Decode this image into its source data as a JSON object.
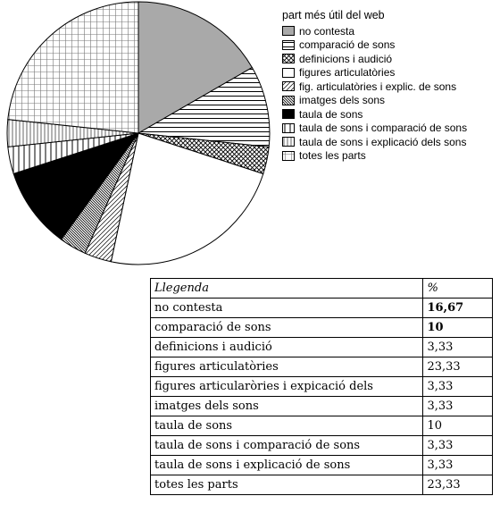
{
  "chart_data": {
    "type": "pie",
    "legend_title": "part més útil del web",
    "legend_placement": "right",
    "slices": [
      {
        "label": "no contesta",
        "value": 16.67,
        "pattern": "gray"
      },
      {
        "label": "comparació de sons",
        "value": 10,
        "pattern": "hlines"
      },
      {
        "label": "definicions i audició",
        "value": 3.33,
        "pattern": "crosshatch"
      },
      {
        "label": "figures articulatòries",
        "value": 23.33,
        "pattern": "white"
      },
      {
        "label": "fig. articulatòries i explic. de sons",
        "value": 3.33,
        "pattern": "diag"
      },
      {
        "label": "imatges dels sons",
        "value": 3.33,
        "pattern": "dense-diag"
      },
      {
        "label": "taula de sons",
        "value": 10,
        "pattern": "black"
      },
      {
        "label": "taula de sons i comparació de sons",
        "value": 3.33,
        "pattern": "vlines"
      },
      {
        "label": "taula de sons i explicació dels sons",
        "value": 3.33,
        "pattern": "vlines-fine"
      },
      {
        "label": "totes les parts",
        "value": 23.33,
        "pattern": "grid"
      }
    ]
  },
  "table": {
    "header": {
      "label": "Llegenda",
      "value": "%"
    },
    "rows": [
      {
        "label": "no contesta",
        "value": "16,67",
        "bold": true
      },
      {
        "label": "comparació de sons",
        "value": "10",
        "bold": true
      },
      {
        "label": "definicions i audició",
        "value": "3,33"
      },
      {
        "label": "figures articulatòries",
        "value": "23,33"
      },
      {
        "label": "figures articularòries i expicació dels",
        "value": "3,33"
      },
      {
        "label": "imatges dels sons",
        "value": "3,33"
      },
      {
        "label": "taula de sons",
        "value": "10"
      },
      {
        "label": "taula de sons i comparació de sons",
        "value": "3,33"
      },
      {
        "label": "taula de sons i explicació de sons",
        "value": "3,33"
      },
      {
        "label": "totes les parts",
        "value": "23,33"
      }
    ]
  }
}
